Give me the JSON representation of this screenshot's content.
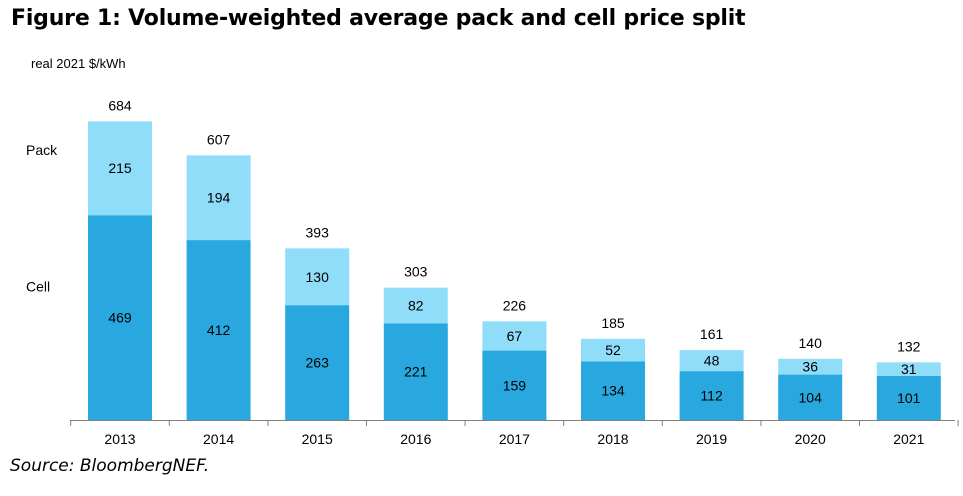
{
  "title": "Figure 1: Volume-weighted average pack and cell price split",
  "source": "Source: BloombergNEF.",
  "chart_data": {
    "type": "bar",
    "stacked": true,
    "title": "Figure 1: Volume-weighted average pack and cell price split",
    "ylabel": "real 2021 $/kWh",
    "xlabel": "",
    "ylim": [
      0,
      700
    ],
    "grid": false,
    "legend": "left",
    "categories": [
      "2013",
      "2014",
      "2015",
      "2016",
      "2017",
      "2018",
      "2019",
      "2020",
      "2021"
    ],
    "series": [
      {
        "name": "Cell",
        "color": "#29A8E0",
        "values": [
          469,
          412,
          263,
          221,
          159,
          134,
          112,
          104,
          101
        ]
      },
      {
        "name": "Pack",
        "color": "#8FDDF9",
        "values": [
          215,
          194,
          130,
          82,
          67,
          52,
          48,
          36,
          31
        ]
      }
    ],
    "totals": [
      684,
      607,
      393,
      303,
      226,
      185,
      161,
      140,
      132
    ]
  }
}
